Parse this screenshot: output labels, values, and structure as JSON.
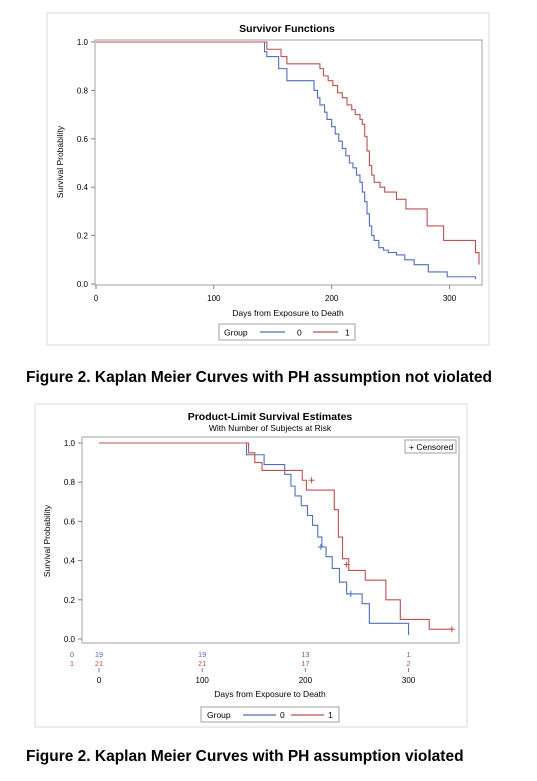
{
  "figure1": {
    "caption": "Figure 2. Kaplan Meier Curves with PH assumption not violated",
    "chart_data": {
      "type": "line",
      "step": true,
      "title": "Survivor Functions",
      "subtitle": "",
      "xlabel": "Days from Exposure to Death",
      "ylabel": "Survival Probability",
      "xlim": [
        0,
        325
      ],
      "ylim": [
        0,
        1.0
      ],
      "xticks": [
        0,
        100,
        200,
        300
      ],
      "yticks": [
        "0.0",
        "0.2",
        "0.4",
        "0.6",
        "0.8",
        "1.0"
      ],
      "grid": false,
      "legend": {
        "title": "Group",
        "placement": "bottom"
      },
      "series": [
        {
          "name": "0",
          "color": "#4f6fbe",
          "x": [
            0,
            143,
            145,
            155,
            162,
            185,
            188,
            190,
            194,
            196,
            200,
            203,
            206,
            209,
            212,
            215,
            218,
            221,
            224,
            226,
            228,
            230,
            232,
            234,
            236,
            240,
            244,
            248,
            255,
            262,
            270,
            282,
            298,
            322
          ],
          "y": [
            1.0,
            0.96,
            0.94,
            0.89,
            0.84,
            0.8,
            0.77,
            0.74,
            0.71,
            0.68,
            0.65,
            0.62,
            0.59,
            0.56,
            0.53,
            0.5,
            0.48,
            0.45,
            0.42,
            0.38,
            0.34,
            0.29,
            0.24,
            0.2,
            0.18,
            0.15,
            0.14,
            0.13,
            0.12,
            0.1,
            0.08,
            0.05,
            0.03,
            0.02
          ]
        },
        {
          "name": "1",
          "color": "#c0504d",
          "x": [
            0,
            145,
            157,
            162,
            173,
            190,
            193,
            197,
            201,
            205,
            209,
            213,
            217,
            220,
            224,
            226,
            228,
            230,
            232,
            234,
            236,
            241,
            245,
            255,
            263,
            281,
            295,
            322,
            325
          ],
          "y": [
            1.0,
            0.97,
            0.94,
            0.91,
            0.91,
            0.89,
            0.86,
            0.84,
            0.82,
            0.79,
            0.77,
            0.74,
            0.72,
            0.7,
            0.68,
            0.66,
            0.61,
            0.55,
            0.49,
            0.45,
            0.42,
            0.4,
            0.38,
            0.35,
            0.31,
            0.24,
            0.18,
            0.13,
            0.08
          ]
        }
      ]
    }
  },
  "figure2": {
    "caption": "Figure 2. Kaplan Meier Curves with PH assumption violated",
    "chart_data": {
      "type": "line",
      "step": true,
      "title": "Product-Limit Survival Estimates",
      "subtitle": "With Number of Subjects at Risk",
      "xlabel": "Days from Exposure to Death",
      "ylabel": "Survival Probability",
      "xlim": [
        0,
        345
      ],
      "ylim": [
        0,
        1.0
      ],
      "xticks": [
        0,
        100,
        200,
        300
      ],
      "yticks": [
        "0.0",
        "0.2",
        "0.4",
        "0.6",
        "0.8",
        "1.0"
      ],
      "grid": false,
      "censored_legend": "+ Censored",
      "legend": {
        "title": "Group",
        "placement": "bottom"
      },
      "at_risk": {
        "times": [
          0,
          100,
          200,
          300
        ],
        "rows": [
          {
            "group": "0",
            "color": "#4f6fbe",
            "counts": [
              "19",
              "19",
              "13",
              "1"
            ]
          },
          {
            "group": "1",
            "color": "#c0504d",
            "counts": [
              "21",
              "21",
              "17",
              "2"
            ]
          }
        ]
      },
      "series": [
        {
          "name": "0",
          "color": "#4f6fbe",
          "x": [
            0,
            143,
            160,
            180,
            186,
            190,
            196,
            202,
            207,
            212,
            216,
            220,
            226,
            233,
            240,
            255,
            262,
            300
          ],
          "y": [
            1.0,
            0.94,
            0.89,
            0.84,
            0.78,
            0.73,
            0.68,
            0.63,
            0.58,
            0.52,
            0.47,
            0.42,
            0.36,
            0.29,
            0.23,
            0.18,
            0.08,
            0.02
          ],
          "censored": [
            {
              "x": 215,
              "y": 0.47
            },
            {
              "x": 244,
              "y": 0.23
            }
          ]
        },
        {
          "name": "1",
          "color": "#c0504d",
          "x": [
            0,
            145,
            151,
            158,
            180,
            197,
            201,
            210,
            228,
            232,
            236,
            242,
            258,
            278,
            292,
            320,
            342
          ],
          "y": [
            1.0,
            0.95,
            0.9,
            0.86,
            0.86,
            0.81,
            0.76,
            0.76,
            0.66,
            0.52,
            0.41,
            0.35,
            0.3,
            0.2,
            0.1,
            0.05,
            0.05
          ],
          "censored": [
            {
              "x": 206,
              "y": 0.81
            },
            {
              "x": 240,
              "y": 0.38
            },
            {
              "x": 342,
              "y": 0.05
            }
          ]
        }
      ]
    }
  }
}
